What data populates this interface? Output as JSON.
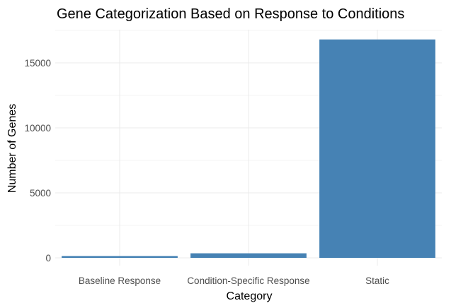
{
  "chart_data": {
    "type": "bar",
    "title": "Gene Categorization Based on Response to Conditions",
    "xlabel": "Category",
    "ylabel": "Number of Genes",
    "categories": [
      "Baseline Response",
      "Condition-Specific Response",
      "Static"
    ],
    "values": [
      140,
      350,
      16800
    ],
    "ylim": [
      0,
      17600
    ],
    "yticks": [
      0,
      5000,
      10000,
      15000
    ],
    "ytick_labels": [
      "0",
      "5000",
      "10000",
      "15000"
    ],
    "grid": true,
    "legend": "none",
    "bar_color": "#4682B4"
  }
}
